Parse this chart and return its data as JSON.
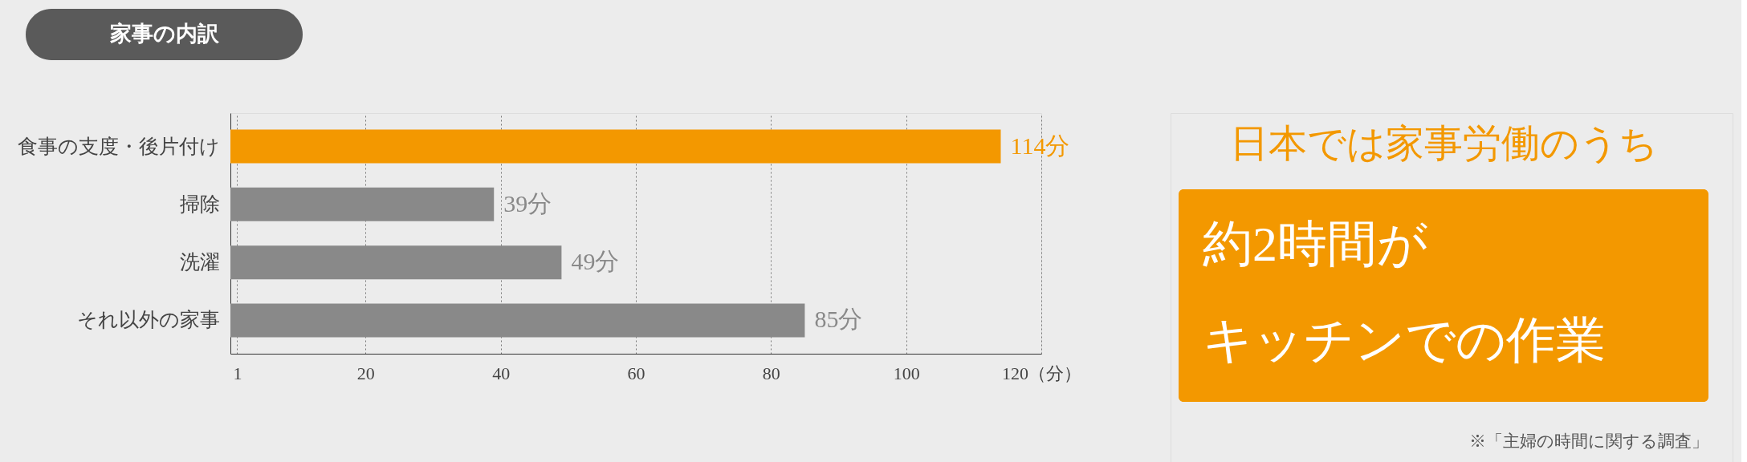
{
  "chart_data": {
    "type": "bar",
    "orientation": "horizontal",
    "title": "家事の内訳",
    "categories": [
      "食事の支度・後片付け",
      "掃除",
      "洗濯",
      "それ以外の家事"
    ],
    "values": [
      114,
      39,
      49,
      85
    ],
    "colors": [
      "#f39800",
      "#898989",
      "#898989",
      "#898989"
    ],
    "value_labels": [
      "114分",
      "39分",
      "49分",
      "85分"
    ],
    "xlim": [
      0,
      120
    ],
    "xticks": [
      1,
      20,
      40,
      60,
      80,
      100,
      {
        "value": 120,
        "label": "120（分）"
      }
    ],
    "grid": "x",
    "annotations": [
      "日本では家事労働のうち",
      "約2時間が",
      "キッチンでの作業",
      "※「主婦の時間に関する調査」"
    ]
  }
}
